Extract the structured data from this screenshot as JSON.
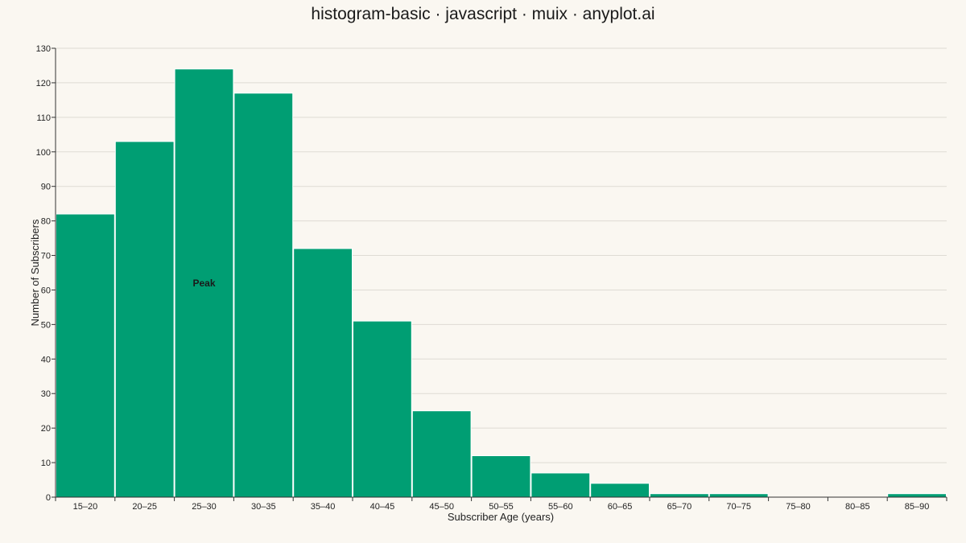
{
  "chart_data": {
    "type": "bar",
    "title": "histogram-basic · javascript · muix · anyplot.ai",
    "xlabel": "Subscriber Age (years)",
    "ylabel": "Number of Subscribers",
    "categories": [
      "15–20",
      "20–25",
      "25–30",
      "30–35",
      "35–40",
      "40–45",
      "45–50",
      "50–55",
      "55–60",
      "60–65",
      "65–70",
      "70–75",
      "75–80",
      "80–85",
      "85–90"
    ],
    "values": [
      82,
      103,
      124,
      117,
      72,
      51,
      25,
      12,
      7,
      4,
      1,
      1,
      0,
      0,
      1
    ],
    "ylim": [
      0,
      130
    ],
    "yticks": [
      0,
      10,
      20,
      30,
      40,
      50,
      60,
      70,
      80,
      90,
      100,
      110,
      120,
      130
    ],
    "grid": true,
    "legend": "none",
    "bar_color": "#009e73",
    "annotations": [
      {
        "text": "Peak",
        "category": "25–30",
        "y": 62
      }
    ]
  }
}
